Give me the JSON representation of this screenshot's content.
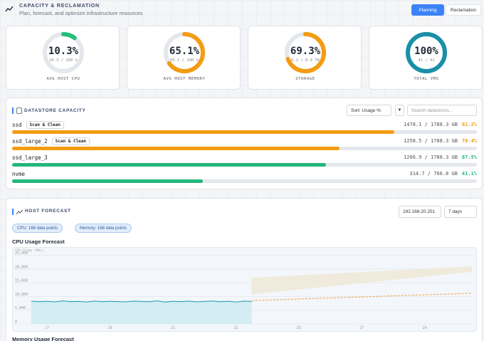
{
  "header": {
    "title": "CAPACITY & RECLAMATION",
    "subtitle": "Plan, forecast, and optimize infrastructure resources",
    "tabs": [
      "Planning",
      "Reclamation"
    ]
  },
  "gauges": [
    {
      "value": 10.3,
      "label": "10.3%",
      "detail": "10.3 / 100 %",
      "name": "AVG HOST CPU",
      "color": "#22c07a"
    },
    {
      "value": 65.1,
      "label": "65.1%",
      "detail": "65.1 / 100 %",
      "name": "AVG HOST MEMORY",
      "color": "#f39c12"
    },
    {
      "value": 69.3,
      "label": "69.3%",
      "detail": "6.2 / 8.9 TB",
      "name": "STORAGE",
      "color": "#f39c12"
    },
    {
      "value": 100,
      "label": "100%",
      "detail": "41 / 41",
      "name": "TOTAL VMS",
      "color": "#1a8fa8"
    }
  ],
  "datastores": {
    "title": "DATASTORE CAPACITY",
    "sort": "Sort: Usage %",
    "search_placeholder": "Search datastores...",
    "action": "Scan & Clean",
    "rows": [
      {
        "name": "ssd",
        "scan": true,
        "usage": "1478.1 / 1788.3 GB",
        "value": 82.2,
        "label": "82.2%",
        "color": "#f39c12"
      },
      {
        "name": "ssd_large_2",
        "scan": true,
        "usage": "1258.5 / 1788.3 GB",
        "value": 70.4,
        "label": "70.4%",
        "color": "#f39c12"
      },
      {
        "name": "ssd_large_3",
        "scan": false,
        "usage": "1206.9 / 1788.3 GB",
        "value": 67.5,
        "label": "67.5%",
        "color": "#22b77a"
      },
      {
        "name": "nvme",
        "scan": false,
        "usage": "314.7 / 766.8 GB",
        "value": 41.1,
        "label": "41.1%",
        "color": "#22b77a"
      }
    ]
  },
  "host_forecast": {
    "title": "HOST FORECAST",
    "host": "192.168.20.251",
    "range": "7 days",
    "pills": [
      "CPU: 168 data points",
      "Memory: 168 data points"
    ],
    "cpu_chart": {
      "title": "CPU Usage Forecast",
      "y_label": "CPU Usage (MHz)",
      "xlim": [
        16.5,
        30.5
      ],
      "ylim": [
        0,
        27000
      ],
      "xticks": [
        17,
        19,
        21,
        23,
        25,
        27,
        29
      ],
      "yticks": [
        0,
        {
          "value": 5000,
          "label": "5,000"
        },
        {
          "value": 10000,
          "label": "10,000"
        },
        {
          "value": 15000,
          "label": "15,000"
        },
        {
          "value": 20000,
          "label": "20,000"
        },
        {
          "value": 25000,
          "label": "25,000"
        }
      ],
      "history": {
        "x": [
          16.5,
          16.75,
          17,
          17.25,
          17.5,
          17.75,
          18,
          18.25,
          18.5,
          18.75,
          19,
          19.25,
          19.5,
          19.75,
          20,
          20.25,
          20.5,
          20.75,
          21,
          21.25,
          21.5,
          21.75,
          22,
          22.25,
          22.5,
          22.75,
          23,
          23.25,
          23.5
        ],
        "values": [
          8300,
          8100,
          8250,
          8050,
          8400,
          8150,
          8200,
          8000,
          8350,
          8100,
          8250,
          8150,
          8050,
          8300,
          8200,
          8100,
          8400,
          8000,
          8250,
          8150,
          8300,
          8050,
          8200,
          8350,
          8100,
          8250,
          8000,
          8300,
          8200
        ]
      },
      "forecast": {
        "x": [
          23.5,
          30.5
        ],
        "values": [
          8500,
          11200
        ]
      },
      "band": {
        "x": [
          23.5,
          30.5
        ],
        "lower": [
          10800,
          19000
        ],
        "upper": [
          16800,
          21000
        ]
      }
    },
    "memory_title": "Memory Usage Forecast"
  }
}
